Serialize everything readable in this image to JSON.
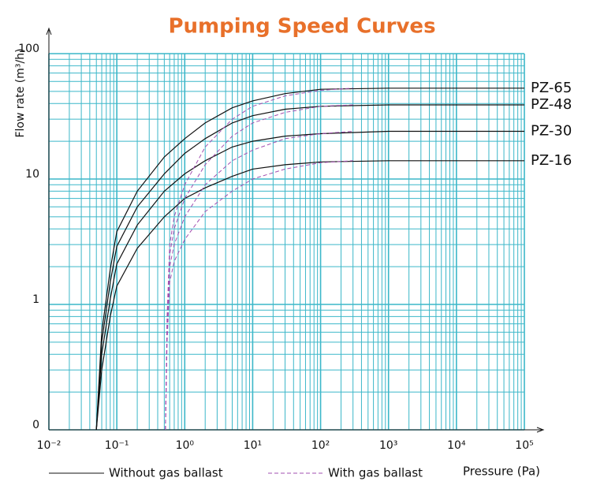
{
  "chart_data": {
    "type": "line",
    "title": "Pumping Speed Curves",
    "xlabel": "Pressure (Pa)",
    "ylabel": "Flow rate (m³/h)",
    "log_x": true,
    "log_y": true,
    "grid": true,
    "grid_color": "#3cb7c9",
    "xlim": [
      0.01,
      100000
    ],
    "ylim": [
      0.1,
      100
    ],
    "xticks": [
      {
        "value": 0.01,
        "label": "10⁻²"
      },
      {
        "value": 0.1,
        "label": "10⁻¹"
      },
      {
        "value": 1,
        "label": "10⁰"
      },
      {
        "value": 10,
        "label": "10¹"
      },
      {
        "value": 100,
        "label": "10²"
      },
      {
        "value": 1000,
        "label": "10³"
      },
      {
        "value": 10000,
        "label": "10⁴"
      },
      {
        "value": 100000,
        "label": "10⁵"
      }
    ],
    "yticks": [
      {
        "value": 0.1,
        "label": "0"
      },
      1,
      10,
      100
    ],
    "legend": [
      {
        "label": "Without gas ballast",
        "color": "#111111",
        "dashed": false
      },
      {
        "label": "With gas ballast",
        "color": "#a24fb0",
        "dashed": true
      }
    ],
    "series": [
      {
        "name": "PZ-65",
        "legend": 0,
        "x": [
          0.05,
          0.06,
          0.08,
          0.1,
          0.2,
          0.5,
          1,
          2,
          5,
          10,
          30,
          100,
          1000,
          100000
        ],
        "values": [
          0.1,
          0.6,
          1.9,
          3.8,
          8,
          15,
          21,
          28,
          37,
          42,
          48,
          52,
          53,
          53
        ]
      },
      {
        "name": "PZ-48",
        "legend": 0,
        "x": [
          0.05,
          0.06,
          0.08,
          0.1,
          0.2,
          0.5,
          1,
          2,
          5,
          10,
          30,
          100,
          1000,
          100000
        ],
        "values": [
          0.1,
          0.5,
          1.5,
          2.9,
          6,
          11,
          16,
          21,
          28,
          32,
          36,
          38,
          39,
          39
        ]
      },
      {
        "name": "PZ-30",
        "legend": 0,
        "x": [
          0.05,
          0.06,
          0.08,
          0.1,
          0.2,
          0.5,
          1,
          2,
          5,
          10,
          30,
          100,
          1000,
          100000
        ],
        "values": [
          0.1,
          0.4,
          1.1,
          2.1,
          4.3,
          8,
          11,
          14,
          18,
          20,
          22,
          23,
          24,
          24
        ]
      },
      {
        "name": "PZ-16",
        "legend": 0,
        "x": [
          0.05,
          0.06,
          0.08,
          0.1,
          0.2,
          0.5,
          1,
          2,
          5,
          10,
          30,
          100,
          1000,
          100000
        ],
        "values": [
          0.1,
          0.3,
          0.8,
          1.4,
          2.8,
          5,
          7,
          8.5,
          10.5,
          12,
          13,
          13.7,
          14,
          14
        ]
      },
      {
        "legend": 1,
        "x": [
          0.52,
          0.55,
          0.6,
          0.7,
          1,
          2,
          5,
          10,
          30,
          100,
          300
        ],
        "values": [
          0.1,
          0.8,
          3,
          5,
          9,
          18,
          30,
          38,
          46,
          51,
          53
        ]
      },
      {
        "legend": 1,
        "x": [
          0.52,
          0.55,
          0.6,
          0.7,
          1,
          2,
          5,
          10,
          30,
          100,
          300
        ],
        "values": [
          0.1,
          0.7,
          2.5,
          4,
          7,
          13,
          22,
          28,
          34,
          38,
          39
        ]
      },
      {
        "legend": 1,
        "x": [
          0.52,
          0.55,
          0.6,
          0.7,
          1,
          2,
          5,
          10,
          30,
          100,
          300
        ],
        "values": [
          0.1,
          0.6,
          2,
          3,
          5,
          9,
          14,
          17,
          21,
          23,
          24
        ]
      },
      {
        "legend": 1,
        "x": [
          0.52,
          0.55,
          0.6,
          0.7,
          1,
          2,
          5,
          10,
          30,
          100,
          300
        ],
        "values": [
          0.1,
          0.5,
          1.5,
          2.2,
          3.3,
          5.5,
          8,
          10,
          12,
          13.5,
          14
        ]
      }
    ]
  }
}
